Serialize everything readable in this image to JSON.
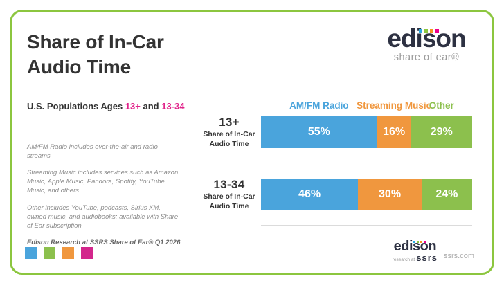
{
  "card": {
    "border_color": "#8CC63F",
    "background": "#FFFFFF"
  },
  "header": {
    "title": "Share of In-Car\nAudio Time",
    "subtitle": {
      "prefix": "U.S. Populations Ages",
      "age1": "13+",
      "conjunction": "and",
      "age2": "13-34",
      "highlight_color": "#E02189"
    }
  },
  "footnotes": [
    "AM/FM Radio includes over-the-air and radio streams",
    "Streaming Music includes services such as Amazon Music, Apple Music, Pandora, Spotify, YouTube Music, and others",
    "Other includes YouTube, podcasts, Sirius XM, owned music, and audiobooks; available with Share of Ear subscription"
  ],
  "source_line": "Edison Research at SSRS Share of Ear® Q1 2026",
  "brand_squares": [
    "#4AA4DC",
    "#8CC04D",
    "#F0973E",
    "#D3268C"
  ],
  "logo_top": {
    "wordmark": "edison",
    "tagline": "share of ear®",
    "text_color": "#2D3142",
    "dot_colors": [
      "#29ABE2",
      "#8CC63F",
      "#F7941E",
      "#EC008C"
    ]
  },
  "logo_bottom": {
    "wordmark": "edison",
    "sub_prefix": "research at",
    "sub_brand": "ssrs",
    "website": "ssrs.com",
    "dot_colors": [
      "#29ABE2",
      "#8CC63F",
      "#F7941E",
      "#EC008C"
    ]
  },
  "chart_data": {
    "type": "bar",
    "subtype": "horizontal-stacked",
    "title": "Share of In-Car Audio Time",
    "categories": [
      "13+",
      "13-34"
    ],
    "category_sublabel": "Share of In-Car\nAudio Time",
    "series": [
      {
        "name": "AM/FM Radio",
        "color": "#4AA4DC",
        "values": [
          55,
          46
        ]
      },
      {
        "name": "Streaming Music",
        "color": "#F0973E",
        "values": [
          16,
          30
        ]
      },
      {
        "name": "Other",
        "color": "#8CC04D",
        "values": [
          29,
          24
        ]
      }
    ],
    "value_suffix": "%",
    "xlim": [
      0,
      100
    ],
    "grid": false,
    "legend_position": "top"
  }
}
